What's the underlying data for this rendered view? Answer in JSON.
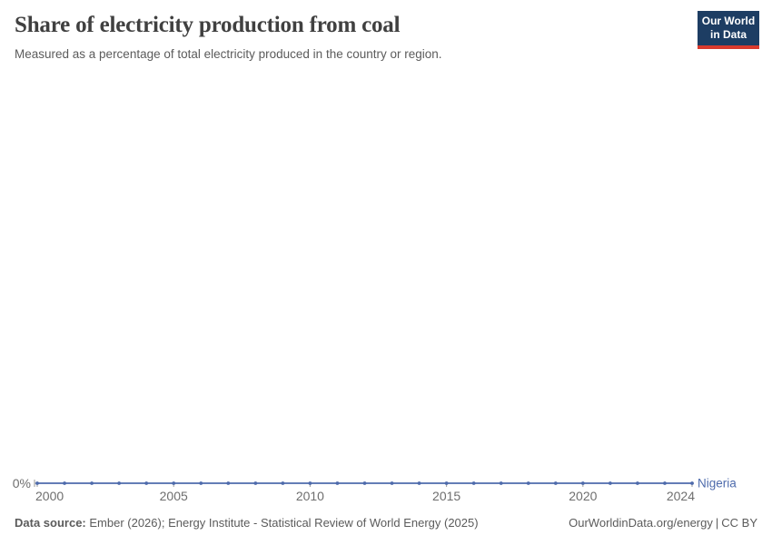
{
  "header": {
    "title": "Share of electricity production from coal",
    "subtitle": "Measured as a percentage of total electricity produced in the country or region."
  },
  "logo": {
    "line1": "Our World",
    "line2": "in Data",
    "bg_color": "#1d3d63",
    "accent_color": "#d93a2d"
  },
  "chart_data": {
    "type": "line",
    "title": "Share of electricity production from coal",
    "xlabel": "",
    "ylabel": "",
    "x": [
      2000,
      2001,
      2002,
      2003,
      2004,
      2005,
      2006,
      2007,
      2008,
      2009,
      2010,
      2011,
      2012,
      2013,
      2014,
      2015,
      2016,
      2017,
      2018,
      2019,
      2020,
      2021,
      2022,
      2023,
      2024
    ],
    "series": [
      {
        "name": "Nigeria",
        "color": "#4e6bac",
        "values": [
          0,
          0,
          0,
          0,
          0,
          0,
          0,
          0,
          0,
          0,
          0,
          0,
          0,
          0,
          0,
          0,
          0,
          0,
          0,
          0,
          0,
          0,
          0,
          0,
          0
        ]
      }
    ],
    "xlim": [
      2000,
      2024
    ],
    "ylim": [
      0,
      1
    ],
    "grid": false,
    "legend_position": "end-of-line",
    "axis": {
      "y_tick_label": "0%",
      "x_tick_values": [
        2000,
        2005,
        2010,
        2015,
        2020,
        2024
      ],
      "zero_line_color": "#a7a7a7",
      "tick_color": "#9a9a9a",
      "label_color": "#6e6e6e"
    }
  },
  "footer": {
    "source_label": "Data source:",
    "source_text": " Ember (2026); Energy Institute - Statistical Review of World Energy (2025)",
    "url_text": "OurWorldinData.org/energy",
    "separator": "|",
    "license_text": "CC BY"
  }
}
